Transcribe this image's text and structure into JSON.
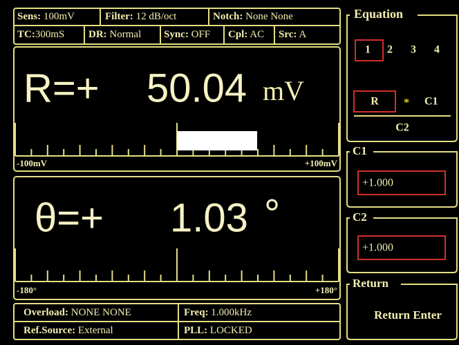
{
  "status": {
    "row1": [
      {
        "label": "Sens:",
        "value": "100mV"
      },
      {
        "label": "Filter:",
        "value": "12  dB/oct"
      },
      {
        "label": "Notch:",
        "value": "None  None"
      }
    ],
    "row2": [
      {
        "label": "TC:",
        "value": "300mS"
      },
      {
        "label": "DR:",
        "value": "Normal"
      },
      {
        "label": "Sync:",
        "value": "OFF"
      },
      {
        "label": "Cpl:",
        "value": "AC"
      },
      {
        "label": "Src:",
        "value": "A"
      }
    ]
  },
  "readout_r": {
    "symbol": "R=+",
    "value": "50.04",
    "unit": "mV",
    "scale_min": "-100mV",
    "scale_max": "+100mV"
  },
  "readout_theta": {
    "symbol": "θ=+",
    "value": "1.03",
    "unit": "°",
    "scale_min": "-180°",
    "scale_max": "+180°"
  },
  "footer": {
    "overload": {
      "label": "Overload:",
      "value": "NONE   NONE"
    },
    "freq": {
      "label": "Freq:",
      "value": "1.000kHz"
    },
    "ref_source": {
      "label": "Ref.Source:",
      "value": "External"
    },
    "pll": {
      "label": "PLL:",
      "value": "LOCKED"
    }
  },
  "equation": {
    "title": "Equation",
    "options": [
      "1",
      "2",
      "3",
      "4"
    ],
    "term1": "R",
    "operator": "*",
    "term2": "C1",
    "divisor": "C2"
  },
  "c1": {
    "title": "C1",
    "value": "+1.000"
  },
  "c2": {
    "title": "C2",
    "value": "+1.000"
  },
  "return": {
    "title": "Return",
    "action": "Return Enter"
  }
}
